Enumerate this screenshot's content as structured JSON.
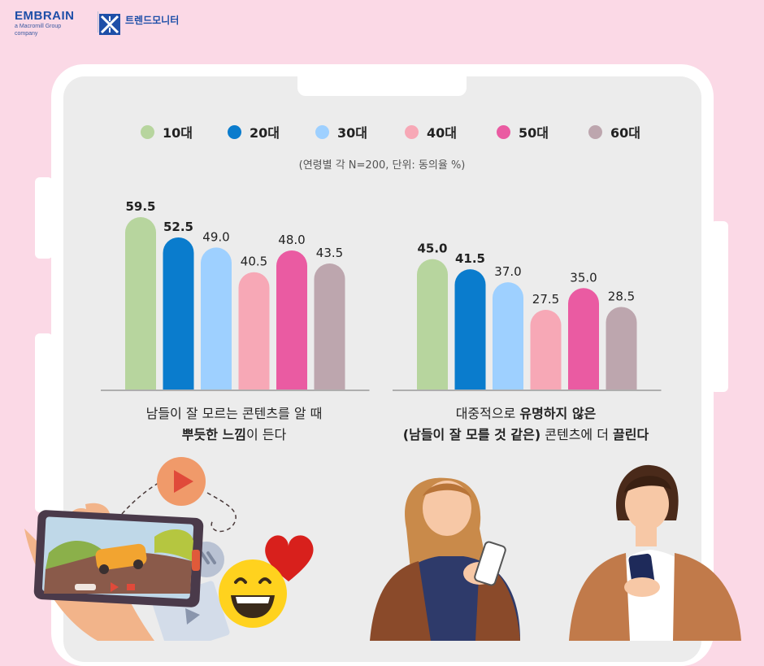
{
  "header": {
    "brand_name": "EMBRAIN",
    "brand_sub": "a Macromill Group company",
    "monitor_name": "트렌드모니터"
  },
  "chart": {
    "note": "(연령별 각 N=200, 단위: 동의율 %)",
    "legend": [
      {
        "label": "10대",
        "color": "#b7d59e"
      },
      {
        "label": "20대",
        "color": "#0a7ccd"
      },
      {
        "label": "30대",
        "color": "#9ed0ff"
      },
      {
        "label": "40대",
        "color": "#f7a8b6"
      },
      {
        "label": "50대",
        "color": "#ea5ba2"
      },
      {
        "label": "60대",
        "color": "#bda6ae"
      }
    ],
    "captions": [
      {
        "line1": "남들이 잘 모르는 콘텐츠를 알 때",
        "line2_bold": "뿌듯한 느낌",
        "line2_rest": "이 든다"
      },
      {
        "line1_plain": "대중적으로 ",
        "line1_bold": "유명하지 않은",
        "line2_bold": "(남들이 잘 모를 것 같은)",
        "line2_mid": " 콘텐츠에 더 ",
        "line2_bold2": "끌린다"
      }
    ]
  },
  "chart_data": {
    "type": "bar",
    "categories": [
      "남들이 잘 모르는 콘텐츠를 알 때 뿌듯한 느낌이 든다",
      "대중적으로 유명하지 않은 (남들이 잘 모를 것 같은) 콘텐츠에 더 끌린다"
    ],
    "series": [
      {
        "name": "10대",
        "values": [
          59.5,
          45.0
        ]
      },
      {
        "name": "20대",
        "values": [
          52.5,
          41.5
        ]
      },
      {
        "name": "30대",
        "values": [
          49.0,
          37.0
        ]
      },
      {
        "name": "40대",
        "values": [
          40.5,
          27.5
        ]
      },
      {
        "name": "50대",
        "values": [
          48.0,
          35.0
        ]
      },
      {
        "name": "60대",
        "values": [
          43.5,
          28.5
        ]
      }
    ],
    "value_labels": [
      [
        "59.5",
        "52.5",
        "49.0",
        "40.5",
        "48.0",
        "43.5"
      ],
      [
        "45.0",
        "41.5",
        "37.0",
        "27.5",
        "35.0",
        "28.5"
      ]
    ],
    "bold_labels": [
      [
        true,
        true,
        false,
        false,
        false,
        false
      ],
      [
        true,
        true,
        false,
        false,
        false,
        false
      ]
    ],
    "ylim": [
      0,
      60
    ],
    "grid": false,
    "legend_position": "top"
  }
}
